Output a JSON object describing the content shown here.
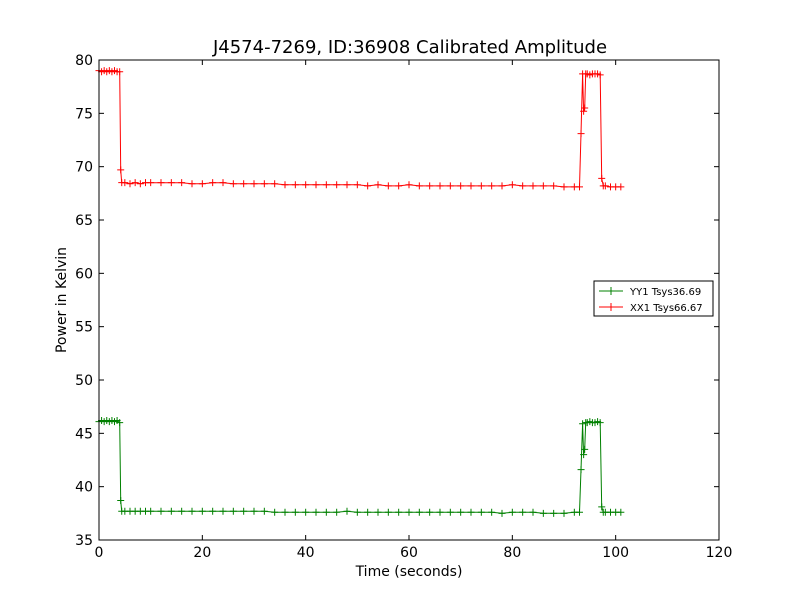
{
  "chart_data": {
    "type": "line",
    "title": "J4574-7269, ID:36908 Calibrated Amplitude",
    "xlabel": "Time (seconds)",
    "ylabel": "Power in Kelvin",
    "xlim": [
      0,
      120
    ],
    "ylim": [
      35,
      80
    ],
    "xticks": [
      0,
      20,
      40,
      60,
      80,
      100,
      120
    ],
    "yticks": [
      35,
      40,
      45,
      50,
      55,
      60,
      65,
      70,
      75,
      80
    ],
    "grid": false,
    "legend_position": "center-right",
    "series": [
      {
        "name": "YY1 Tsys36.69",
        "color": "#008000",
        "marker": "+",
        "x": [
          0,
          0.5,
          1,
          1.5,
          2,
          2.5,
          3,
          3.5,
          4,
          4.2,
          4.4,
          5,
          6,
          7,
          8,
          9,
          10,
          12,
          14,
          16,
          18,
          20,
          22,
          24,
          26,
          28,
          30,
          32,
          34,
          36,
          38,
          40,
          42,
          44,
          46,
          48,
          50,
          52,
          54,
          56,
          58,
          60,
          62,
          64,
          66,
          68,
          70,
          72,
          74,
          76,
          78,
          80,
          82,
          84,
          86,
          88,
          90,
          92,
          93,
          93.3,
          93.6,
          93.8,
          94,
          94.2,
          94.5,
          95,
          95.5,
          96,
          96.5,
          97,
          97.3,
          97.6,
          98,
          99,
          100,
          101
        ],
        "y": [
          46.1,
          46.2,
          46.1,
          46.2,
          46.1,
          46.2,
          46.1,
          46.2,
          46.0,
          38.7,
          37.7,
          37.7,
          37.7,
          37.7,
          37.7,
          37.7,
          37.7,
          37.7,
          37.7,
          37.7,
          37.7,
          37.7,
          37.7,
          37.7,
          37.7,
          37.7,
          37.7,
          37.7,
          37.6,
          37.6,
          37.6,
          37.6,
          37.6,
          37.6,
          37.6,
          37.7,
          37.6,
          37.6,
          37.6,
          37.6,
          37.6,
          37.6,
          37.6,
          37.6,
          37.6,
          37.6,
          37.6,
          37.6,
          37.6,
          37.6,
          37.5,
          37.6,
          37.6,
          37.6,
          37.5,
          37.5,
          37.5,
          37.6,
          37.6,
          41.6,
          45.9,
          43.0,
          43.5,
          46.0,
          46.0,
          46.1,
          46.0,
          46.0,
          46.1,
          46.0,
          38.1,
          37.6,
          37.6,
          37.6,
          37.6,
          37.6
        ]
      },
      {
        "name": "XX1 Tsys66.67",
        "color": "#ff0000",
        "marker": "+",
        "x": [
          0,
          0.5,
          1,
          1.5,
          2,
          2.5,
          3,
          3.5,
          4,
          4.2,
          4.4,
          5,
          6,
          7,
          8,
          9,
          10,
          12,
          14,
          16,
          18,
          20,
          22,
          24,
          26,
          28,
          30,
          32,
          34,
          36,
          38,
          40,
          42,
          44,
          46,
          48,
          50,
          52,
          54,
          56,
          58,
          60,
          62,
          64,
          66,
          68,
          70,
          72,
          74,
          76,
          78,
          80,
          82,
          84,
          86,
          88,
          90,
          92,
          93,
          93.3,
          93.6,
          93.8,
          94,
          94.2,
          94.5,
          95,
          95.5,
          96,
          96.5,
          97,
          97.3,
          97.6,
          98,
          99,
          100,
          101
        ],
        "y": [
          79.0,
          78.9,
          79.0,
          78.9,
          79.0,
          78.9,
          79.0,
          78.9,
          78.9,
          69.7,
          68.5,
          68.5,
          68.4,
          68.5,
          68.4,
          68.5,
          68.5,
          68.5,
          68.5,
          68.5,
          68.4,
          68.4,
          68.5,
          68.5,
          68.4,
          68.4,
          68.4,
          68.4,
          68.4,
          68.3,
          68.3,
          68.3,
          68.3,
          68.3,
          68.3,
          68.3,
          68.3,
          68.2,
          68.3,
          68.2,
          68.2,
          68.3,
          68.2,
          68.2,
          68.2,
          68.2,
          68.2,
          68.2,
          68.2,
          68.2,
          68.2,
          68.3,
          68.2,
          68.2,
          68.2,
          68.2,
          68.1,
          68.1,
          68.1,
          73.1,
          78.7,
          75.2,
          75.5,
          78.7,
          78.7,
          78.6,
          78.7,
          78.7,
          78.7,
          78.6,
          68.9,
          68.2,
          68.2,
          68.1,
          68.1,
          68.1
        ]
      }
    ]
  }
}
